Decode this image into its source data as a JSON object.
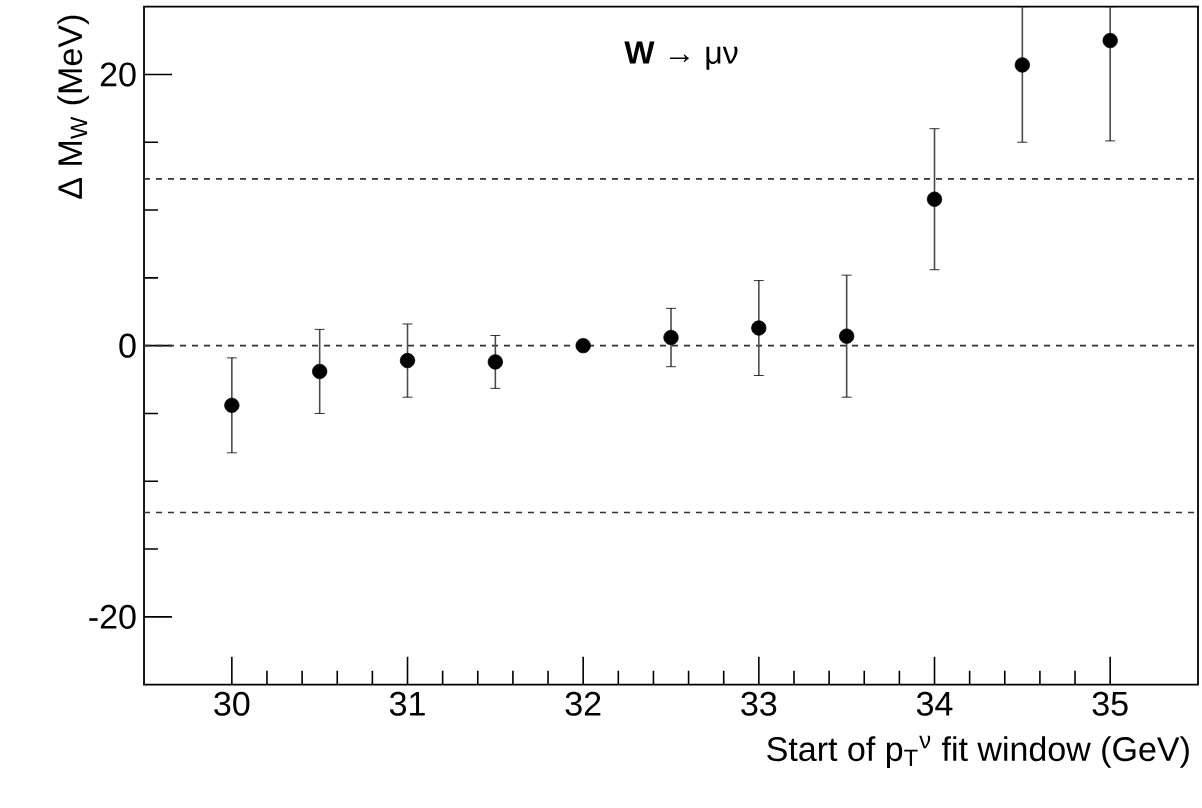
{
  "chart_data": {
    "type": "scatter",
    "title": "**W** → μν",
    "xlabel": "Start of p$_{T}$$^{ν}$ fit window (GeV)",
    "ylabel": "Δ M$_{W}$ (MeV)",
    "x": [
      30,
      30.5,
      31,
      31.5,
      32,
      32.5,
      33,
      33.5,
      34,
      34.5,
      35
    ],
    "series": [
      {
        "color": "#000000",
        "values": [
          -4.4,
          -1.9,
          -1.1,
          -1.2,
          0,
          0.6,
          1.3,
          0.7,
          10.8,
          20.7,
          22.5
        ],
        "errors": [
          3.5,
          3.1,
          2.7,
          1.95,
          null,
          2.15,
          3.5,
          4.5,
          5.2,
          [
            15.0,
            25
          ],
          [
            15.1,
            25
          ]
        ]
      }
    ],
    "xlim": [
      29.5,
      35.5
    ],
    "ylim": [
      -25,
      25
    ],
    "xticks": [
      30,
      31,
      32,
      33,
      34,
      35
    ],
    "yticks": [
      -20,
      0,
      20
    ],
    "ref_lines": [
      {
        "axis": "y",
        "value": 12.3,
        "line_style": "dashed"
      },
      {
        "axis": "y",
        "value": 0,
        "line_style": "dashed"
      },
      {
        "axis": "y",
        "value": -12.3,
        "line_style": "dashed"
      }
    ],
    "marker": "circle"
  }
}
